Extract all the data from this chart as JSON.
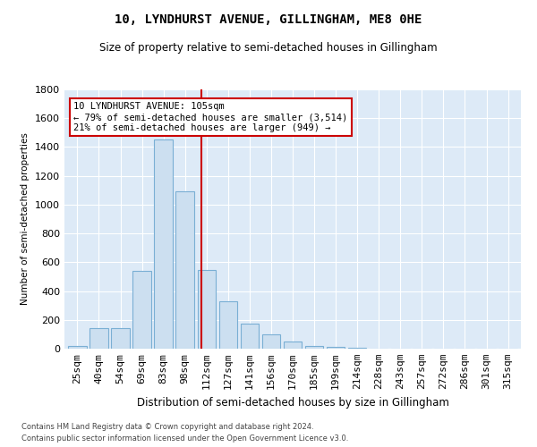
{
  "title": "10, LYNDHURST AVENUE, GILLINGHAM, ME8 0HE",
  "subtitle": "Size of property relative to semi-detached houses in Gillingham",
  "xlabel": "Distribution of semi-detached houses by size in Gillingham",
  "ylabel": "Number of semi-detached properties",
  "footnote1": "Contains HM Land Registry data © Crown copyright and database right 2024.",
  "footnote2": "Contains public sector information licensed under the Open Government Licence v3.0.",
  "annotation_title": "10 LYNDHURST AVENUE: 105sqm",
  "annotation_line1": "← 79% of semi-detached houses are smaller (3,514)",
  "annotation_line2": "21% of semi-detached houses are larger (949) →",
  "bar_color": "#ccdff0",
  "bar_edge_color": "#7aafd4",
  "vline_color": "#cc0000",
  "annotation_box_edgecolor": "#cc0000",
  "background_color": "#ddeaf7",
  "categories": [
    "25sqm",
    "40sqm",
    "54sqm",
    "69sqm",
    "83sqm",
    "98sqm",
    "112sqm",
    "127sqm",
    "141sqm",
    "156sqm",
    "170sqm",
    "185sqm",
    "199sqm",
    "214sqm",
    "228sqm",
    "243sqm",
    "257sqm",
    "272sqm",
    "286sqm",
    "301sqm",
    "315sqm"
  ],
  "values": [
    20,
    140,
    140,
    540,
    1450,
    1090,
    545,
    330,
    175,
    100,
    50,
    20,
    10,
    5,
    2,
    2,
    1,
    1,
    1,
    1,
    1
  ],
  "ylim": [
    0,
    1800
  ],
  "yticks": [
    0,
    200,
    400,
    600,
    800,
    1000,
    1200,
    1400,
    1600,
    1800
  ],
  "vline_x_index": 5.78
}
